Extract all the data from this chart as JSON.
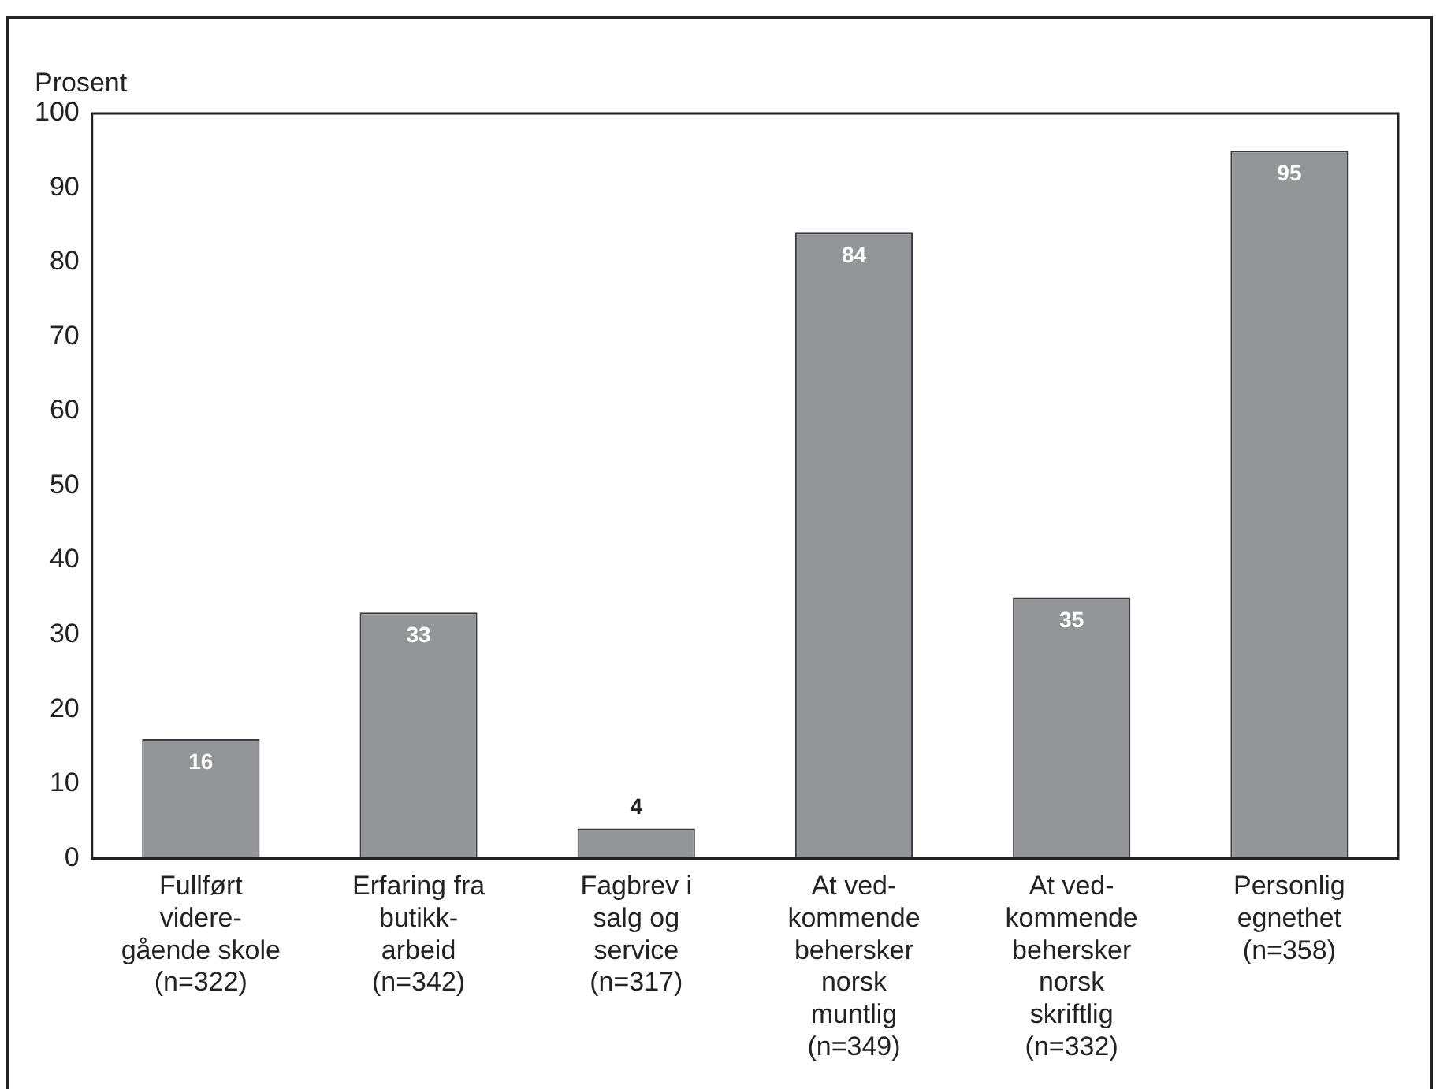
{
  "chart_data": {
    "type": "bar",
    "ylabel": "Prosent",
    "categories": [
      "Fullført\nvidere-\ngående skole\n(n=322)",
      "Erfaring fra\nbutikk-\narbeid\n(n=342)",
      "Fagbrev i\nsalg og\nservice\n(n=317)",
      "At ved-\nkommende\nbehersker\nnorsk\nmuntlig\n(n=349)",
      "At ved-\nkommende\nbehersker\nnorsk\nskriftlig\n(n=332)",
      "Personlig\negnethet\n(n=358)"
    ],
    "values": [
      16,
      33,
      4,
      84,
      35,
      95
    ],
    "color": "#939598",
    "ylim": [
      0,
      100
    ],
    "yticks": [
      0,
      10,
      20,
      30,
      40,
      50,
      60,
      70,
      80,
      90,
      100
    ],
    "grid": false,
    "legend": false,
    "data_labels": true
  }
}
